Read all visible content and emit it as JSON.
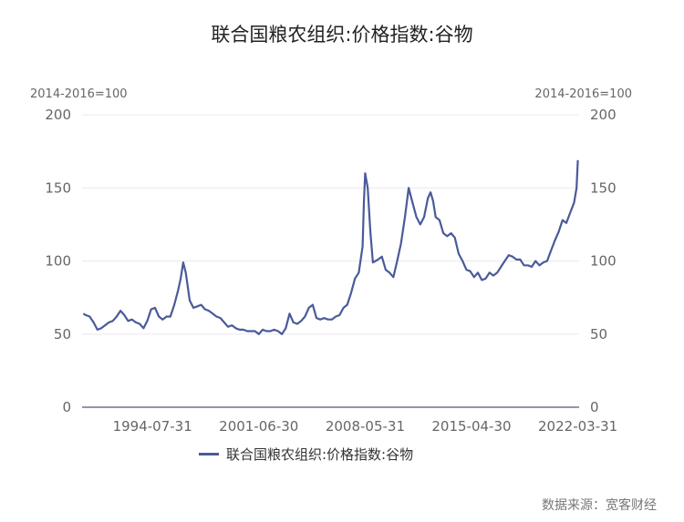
{
  "chart_data": {
    "type": "line",
    "title": "联合国粮农组织:价格指数:谷物",
    "unit_left": "2014-2016=100",
    "unit_right": "2014-2016=100",
    "ylim": [
      0,
      200
    ],
    "y_ticks": [
      0,
      50,
      100,
      150,
      200
    ],
    "x_ticks": [
      "1994-07-31",
      "2001-06-30",
      "2008-05-31",
      "2015-04-30",
      "2022-03-31"
    ],
    "grid": true,
    "legend_position": "bottom",
    "series": [
      {
        "name": "联合国粮农组织:价格指数:谷物",
        "color": "#4a5a9a",
        "x": [
          "1990-01-31",
          "1990-03-31",
          "1990-06-30",
          "1990-09-30",
          "1990-12-31",
          "1991-03-31",
          "1991-06-30",
          "1991-09-30",
          "1991-12-31",
          "1992-03-31",
          "1992-06-30",
          "1992-09-30",
          "1992-12-31",
          "1993-03-31",
          "1993-06-30",
          "1993-09-30",
          "1993-12-31",
          "1994-03-31",
          "1994-06-30",
          "1994-09-30",
          "1994-12-31",
          "1995-03-31",
          "1995-06-30",
          "1995-09-30",
          "1995-12-31",
          "1996-03-31",
          "1996-05-31",
          "1996-07-31",
          "1996-09-30",
          "1996-12-31",
          "1997-03-31",
          "1997-06-30",
          "1997-09-30",
          "1997-12-31",
          "1998-03-31",
          "1998-06-30",
          "1998-09-30",
          "1998-12-31",
          "1999-03-31",
          "1999-06-30",
          "1999-09-30",
          "1999-12-31",
          "2000-03-31",
          "2000-06-30",
          "2000-09-30",
          "2000-12-31",
          "2001-03-31",
          "2001-06-30",
          "2001-09-30",
          "2001-12-31",
          "2002-03-31",
          "2002-06-30",
          "2002-09-30",
          "2002-12-31",
          "2003-03-31",
          "2003-06-30",
          "2003-09-30",
          "2003-12-31",
          "2004-03-31",
          "2004-06-30",
          "2004-09-30",
          "2004-12-31",
          "2005-03-31",
          "2005-06-30",
          "2005-09-30",
          "2005-12-31",
          "2006-03-31",
          "2006-06-30",
          "2006-09-30",
          "2006-12-31",
          "2007-03-31",
          "2007-06-30",
          "2007-09-30",
          "2007-12-31",
          "2008-03-31",
          "2008-04-30",
          "2008-05-31",
          "2008-07-31",
          "2008-09-30",
          "2008-11-30",
          "2009-01-31",
          "2009-03-31",
          "2009-06-30",
          "2009-09-30",
          "2009-12-31",
          "2010-03-31",
          "2010-06-30",
          "2010-09-30",
          "2010-12-31",
          "2011-03-31",
          "2011-06-30",
          "2011-09-30",
          "2011-12-31",
          "2012-03-31",
          "2012-06-30",
          "2012-08-31",
          "2012-10-31",
          "2012-12-31",
          "2013-03-31",
          "2013-06-30",
          "2013-09-30",
          "2013-12-31",
          "2014-03-31",
          "2014-06-30",
          "2014-09-30",
          "2014-12-31",
          "2015-03-31",
          "2015-06-30",
          "2015-09-30",
          "2015-12-31",
          "2016-03-31",
          "2016-06-30",
          "2016-09-30",
          "2016-12-31",
          "2017-03-31",
          "2017-06-30",
          "2017-09-30",
          "2017-12-31",
          "2018-03-31",
          "2018-06-30",
          "2018-09-30",
          "2018-12-31",
          "2019-03-31",
          "2019-06-30",
          "2019-09-30",
          "2019-12-31",
          "2020-03-31",
          "2020-06-30",
          "2020-09-30",
          "2020-12-31",
          "2021-03-31",
          "2021-06-30",
          "2021-09-30",
          "2021-12-31",
          "2022-02-28",
          "2022-03-31"
        ],
        "values": [
          64,
          63,
          62,
          58,
          53,
          54,
          56,
          58,
          59,
          62,
          66,
          63,
          59,
          60,
          58,
          57,
          54,
          59,
          67,
          68,
          62,
          60,
          62,
          62,
          70,
          80,
          88,
          99,
          92,
          73,
          68,
          69,
          70,
          67,
          66,
          64,
          62,
          61,
          58,
          55,
          56,
          54,
          53,
          53,
          52,
          52,
          52,
          50,
          53,
          52,
          52,
          53,
          52,
          50,
          54,
          64,
          58,
          57,
          59,
          62,
          68,
          70,
          61,
          60,
          61,
          60,
          60,
          62,
          63,
          68,
          70,
          78,
          88,
          92,
          110,
          140,
          160,
          150,
          120,
          99,
          100,
          101,
          103,
          94,
          92,
          89,
          100,
          112,
          130,
          150,
          140,
          130,
          125,
          130,
          143,
          147,
          141,
          130,
          128,
          119,
          117,
          119,
          116,
          105,
          100,
          94,
          93,
          89,
          92,
          87,
          88,
          92,
          90,
          92,
          96,
          100,
          104,
          103,
          101,
          101,
          97,
          97,
          96,
          100,
          97,
          99,
          100,
          107,
          114,
          120,
          128,
          126,
          133,
          140,
          150,
          169
        ]
      }
    ]
  },
  "source": "数据来源：宽客财经"
}
